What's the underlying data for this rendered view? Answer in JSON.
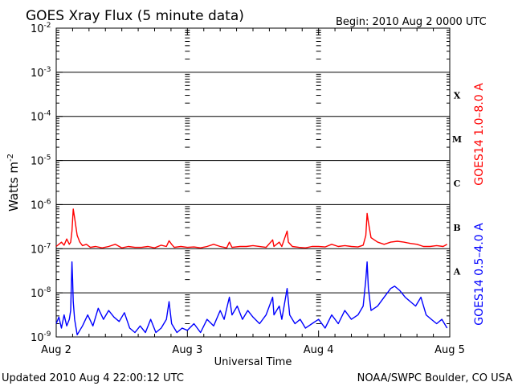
{
  "chart_data": {
    "type": "line",
    "title": "GOES Xray Flux (5 minute data)",
    "begin_label": "Begin:  2010 Aug 2 0000 UTC",
    "xlabel": "Universal Time",
    "ylabel_main": "Watts m",
    "ylabel_exp": "-2",
    "footer_left": "Updated 2010 Aug  4 22:00:12 UTC",
    "footer_right": "NOAA/SWPC Boulder, CO USA",
    "y_scale": "log",
    "ylim": [
      1e-09,
      0.01
    ],
    "xlim_days": [
      0,
      3
    ],
    "x_ticks": [
      {
        "day": 0,
        "label": "Aug 2"
      },
      {
        "day": 1,
        "label": "Aug 3"
      },
      {
        "day": 2,
        "label": "Aug 4"
      },
      {
        "day": 3,
        "label": "Aug 5"
      }
    ],
    "y_ticks": [
      {
        "exp": -2,
        "label": "10",
        "sup": "-2"
      },
      {
        "exp": -3,
        "label": "10",
        "sup": "-3"
      },
      {
        "exp": -4,
        "label": "10",
        "sup": "-4"
      },
      {
        "exp": -5,
        "label": "10",
        "sup": "-5"
      },
      {
        "exp": -6,
        "label": "10",
        "sup": "-6"
      },
      {
        "exp": -7,
        "label": "10",
        "sup": "-7"
      },
      {
        "exp": -8,
        "label": "10",
        "sup": "-8"
      },
      {
        "exp": -9,
        "label": "10",
        "sup": "-9"
      }
    ],
    "flare_classes": [
      {
        "label": "X",
        "exp": -3.5
      },
      {
        "label": "M",
        "exp": -4.5
      },
      {
        "label": "C",
        "exp": -5.5
      },
      {
        "label": "B",
        "exp": -6.5
      },
      {
        "label": "A",
        "exp": -7.5
      }
    ],
    "grid": "horizontal lines at each decade",
    "series": [
      {
        "name": "GOES14 1.0–8.0 A",
        "color": "#ff0000",
        "points": [
          [
            0.0,
            -6.95
          ],
          [
            0.02,
            -6.9
          ],
          [
            0.04,
            -6.85
          ],
          [
            0.06,
            -6.92
          ],
          [
            0.08,
            -6.78
          ],
          [
            0.1,
            -6.9
          ],
          [
            0.11,
            -6.85
          ],
          [
            0.12,
            -6.6
          ],
          [
            0.13,
            -6.1
          ],
          [
            0.14,
            -6.3
          ],
          [
            0.16,
            -6.7
          ],
          [
            0.18,
            -6.85
          ],
          [
            0.2,
            -6.93
          ],
          [
            0.23,
            -6.9
          ],
          [
            0.26,
            -6.97
          ],
          [
            0.3,
            -6.95
          ],
          [
            0.35,
            -6.98
          ],
          [
            0.4,
            -6.95
          ],
          [
            0.45,
            -6.9
          ],
          [
            0.5,
            -6.98
          ],
          [
            0.55,
            -6.95
          ],
          [
            0.6,
            -6.97
          ],
          [
            0.65,
            -6.97
          ],
          [
            0.7,
            -6.95
          ],
          [
            0.75,
            -6.98
          ],
          [
            0.8,
            -6.92
          ],
          [
            0.84,
            -6.95
          ],
          [
            0.86,
            -6.82
          ],
          [
            0.88,
            -6.9
          ],
          [
            0.9,
            -6.97
          ],
          [
            0.95,
            -6.95
          ],
          [
            1.0,
            -6.97
          ],
          [
            1.05,
            -6.96
          ],
          [
            1.1,
            -6.98
          ],
          [
            1.15,
            -6.95
          ],
          [
            1.2,
            -6.9
          ],
          [
            1.25,
            -6.95
          ],
          [
            1.3,
            -6.98
          ],
          [
            1.32,
            -6.85
          ],
          [
            1.34,
            -6.97
          ],
          [
            1.4,
            -6.95
          ],
          [
            1.45,
            -6.95
          ],
          [
            1.5,
            -6.93
          ],
          [
            1.6,
            -6.97
          ],
          [
            1.65,
            -6.8
          ],
          [
            1.66,
            -6.95
          ],
          [
            1.7,
            -6.85
          ],
          [
            1.72,
            -6.95
          ],
          [
            1.76,
            -6.6
          ],
          [
            1.77,
            -6.85
          ],
          [
            1.8,
            -6.95
          ],
          [
            1.85,
            -6.97
          ],
          [
            1.9,
            -6.98
          ],
          [
            1.95,
            -6.95
          ],
          [
            2.0,
            -6.95
          ],
          [
            2.05,
            -6.96
          ],
          [
            2.1,
            -6.9
          ],
          [
            2.15,
            -6.95
          ],
          [
            2.2,
            -6.93
          ],
          [
            2.25,
            -6.95
          ],
          [
            2.3,
            -6.96
          ],
          [
            2.34,
            -6.92
          ],
          [
            2.36,
            -6.7
          ],
          [
            2.37,
            -6.2
          ],
          [
            2.38,
            -6.4
          ],
          [
            2.4,
            -6.75
          ],
          [
            2.45,
            -6.85
          ],
          [
            2.5,
            -6.9
          ],
          [
            2.55,
            -6.85
          ],
          [
            2.6,
            -6.83
          ],
          [
            2.65,
            -6.85
          ],
          [
            2.7,
            -6.88
          ],
          [
            2.75,
            -6.9
          ],
          [
            2.8,
            -6.95
          ],
          [
            2.85,
            -6.95
          ],
          [
            2.9,
            -6.93
          ],
          [
            2.95,
            -6.95
          ],
          [
            2.98,
            -6.9
          ]
        ]
      },
      {
        "name": "GOES14 0.5–4.0 A",
        "color": "#0000ff",
        "points": [
          [
            0.0,
            -8.7
          ],
          [
            0.02,
            -8.55
          ],
          [
            0.04,
            -8.8
          ],
          [
            0.06,
            -8.5
          ],
          [
            0.08,
            -8.75
          ],
          [
            0.1,
            -8.6
          ],
          [
            0.11,
            -8.4
          ],
          [
            0.12,
            -7.3
          ],
          [
            0.125,
            -7.7
          ],
          [
            0.13,
            -8.2
          ],
          [
            0.14,
            -8.6
          ],
          [
            0.16,
            -8.95
          ],
          [
            0.2,
            -8.75
          ],
          [
            0.24,
            -8.5
          ],
          [
            0.28,
            -8.75
          ],
          [
            0.32,
            -8.35
          ],
          [
            0.36,
            -8.6
          ],
          [
            0.4,
            -8.4
          ],
          [
            0.44,
            -8.55
          ],
          [
            0.48,
            -8.65
          ],
          [
            0.52,
            -8.45
          ],
          [
            0.56,
            -8.8
          ],
          [
            0.6,
            -8.9
          ],
          [
            0.64,
            -8.75
          ],
          [
            0.68,
            -8.9
          ],
          [
            0.72,
            -8.6
          ],
          [
            0.76,
            -8.9
          ],
          [
            0.8,
            -8.8
          ],
          [
            0.84,
            -8.6
          ],
          [
            0.86,
            -8.2
          ],
          [
            0.88,
            -8.7
          ],
          [
            0.92,
            -8.9
          ],
          [
            0.96,
            -8.8
          ],
          [
            1.0,
            -8.85
          ],
          [
            1.05,
            -8.7
          ],
          [
            1.1,
            -8.9
          ],
          [
            1.15,
            -8.6
          ],
          [
            1.2,
            -8.75
          ],
          [
            1.25,
            -8.4
          ],
          [
            1.28,
            -8.6
          ],
          [
            1.32,
            -8.1
          ],
          [
            1.34,
            -8.5
          ],
          [
            1.38,
            -8.3
          ],
          [
            1.42,
            -8.6
          ],
          [
            1.46,
            -8.4
          ],
          [
            1.5,
            -8.55
          ],
          [
            1.55,
            -8.7
          ],
          [
            1.6,
            -8.5
          ],
          [
            1.65,
            -8.1
          ],
          [
            1.66,
            -8.5
          ],
          [
            1.7,
            -8.3
          ],
          [
            1.72,
            -8.6
          ],
          [
            1.76,
            -7.9
          ],
          [
            1.78,
            -8.5
          ],
          [
            1.82,
            -8.7
          ],
          [
            1.86,
            -8.6
          ],
          [
            1.9,
            -8.8
          ],
          [
            1.95,
            -8.7
          ],
          [
            2.0,
            -8.6
          ],
          [
            2.05,
            -8.8
          ],
          [
            2.1,
            -8.5
          ],
          [
            2.15,
            -8.7
          ],
          [
            2.2,
            -8.4
          ],
          [
            2.25,
            -8.6
          ],
          [
            2.3,
            -8.5
          ],
          [
            2.34,
            -8.3
          ],
          [
            2.36,
            -7.7
          ],
          [
            2.37,
            -7.3
          ],
          [
            2.38,
            -7.9
          ],
          [
            2.4,
            -8.4
          ],
          [
            2.45,
            -8.3
          ],
          [
            2.5,
            -8.1
          ],
          [
            2.55,
            -7.9
          ],
          [
            2.58,
            -7.85
          ],
          [
            2.62,
            -7.95
          ],
          [
            2.66,
            -8.1
          ],
          [
            2.7,
            -8.2
          ],
          [
            2.74,
            -8.3
          ],
          [
            2.78,
            -8.1
          ],
          [
            2.82,
            -8.5
          ],
          [
            2.86,
            -8.6
          ],
          [
            2.9,
            -8.7
          ],
          [
            2.94,
            -8.6
          ],
          [
            2.98,
            -8.8
          ]
        ]
      }
    ]
  }
}
